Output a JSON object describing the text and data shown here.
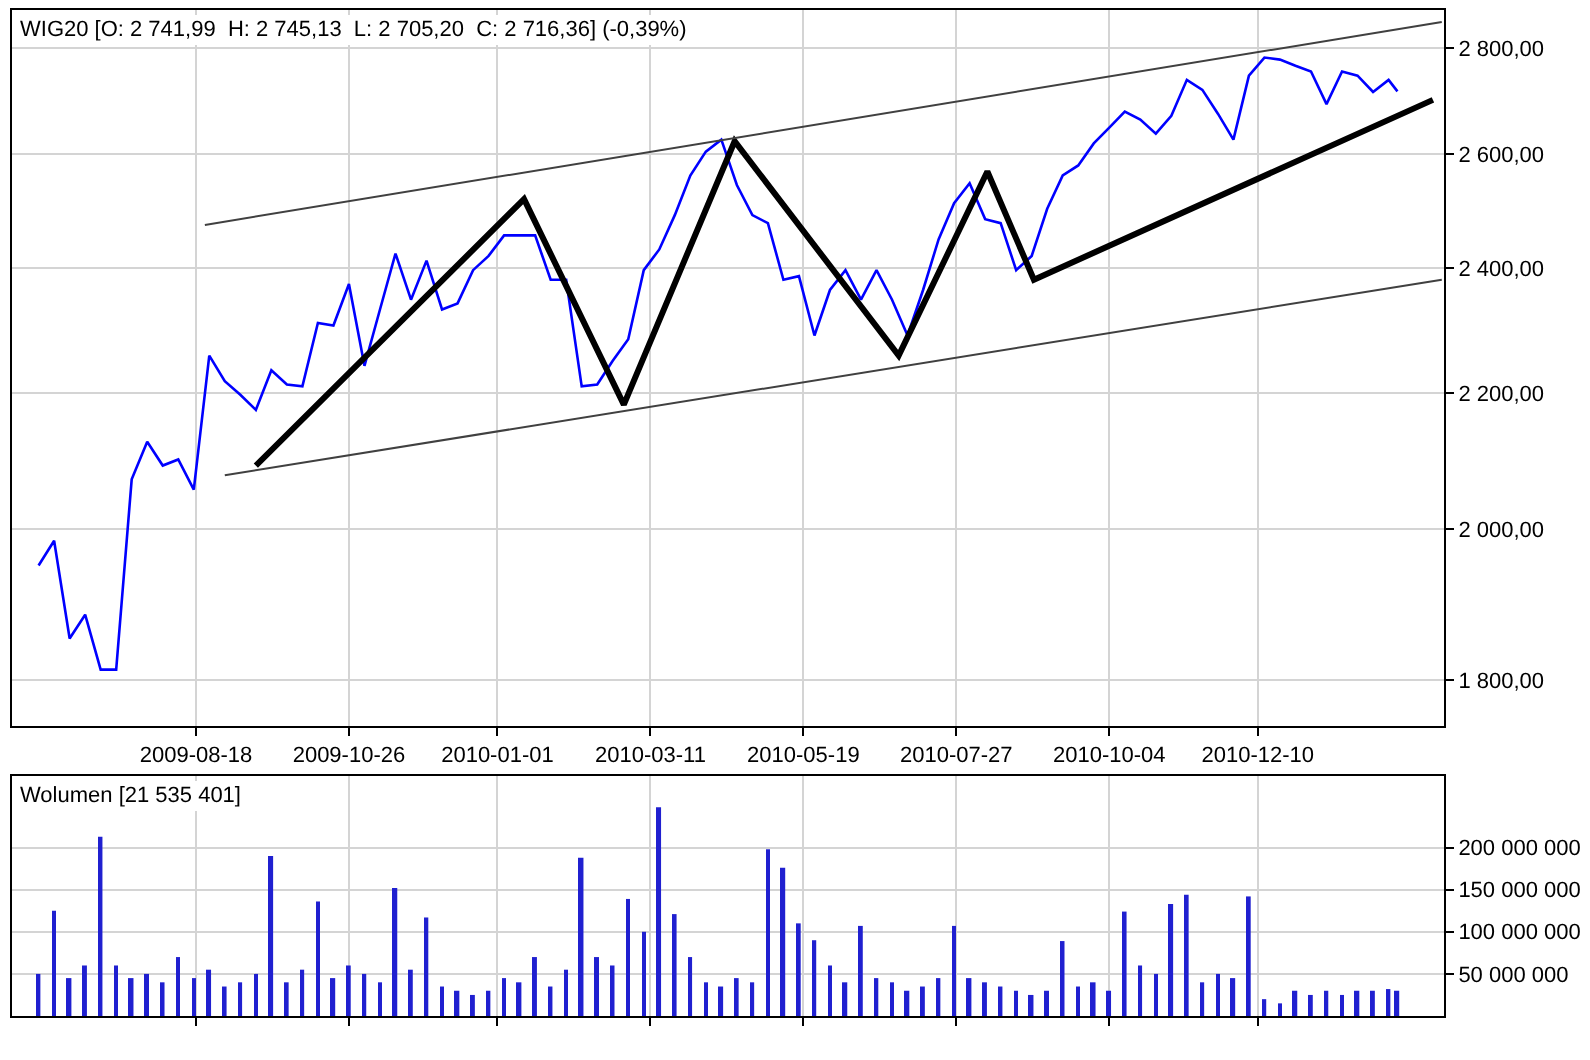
{
  "chart_data": [
    {
      "type": "line",
      "annotations": [
        "WIG20 [O: 2 741,99  H: 2 745,13  L: 2 705,20  C: 2 716,36] (-0,39%)"
      ],
      "log": true,
      "grid": true,
      "marker": "none",
      "line_style": "solid",
      "xlim": [
        "2009-05-27",
        "2011-03-04"
      ],
      "xticks": [
        "2009-08-18",
        "2009-10-26",
        "2010-01-01",
        "2010-03-11",
        "2010-05-19",
        "2010-07-27",
        "2010-10-04",
        "2010-12-10"
      ],
      "ylim": [
        1743,
        2875
      ],
      "yticks": [
        {
          "value": 1800,
          "label": "1 800,00"
        },
        {
          "value": 2000,
          "label": "2 000,00"
        },
        {
          "value": 2200,
          "label": "2 200,00"
        },
        {
          "value": 2400,
          "label": "2 400,00"
        },
        {
          "value": 2600,
          "label": "2 600,00"
        },
        {
          "value": 2800,
          "label": "2 800,00"
        }
      ],
      "series": [
        {
          "color": "#0000ff",
          "x": [
            "2009-06-08",
            "2009-06-15",
            "2009-06-22",
            "2009-06-29",
            "2009-07-06",
            "2009-07-13",
            "2009-07-20",
            "2009-07-27",
            "2009-08-03",
            "2009-08-10",
            "2009-08-17",
            "2009-08-24",
            "2009-08-31",
            "2009-09-07",
            "2009-09-14",
            "2009-09-21",
            "2009-09-28",
            "2009-10-05",
            "2009-10-12",
            "2009-10-19",
            "2009-10-26",
            "2009-11-02",
            "2009-11-09",
            "2009-11-16",
            "2009-11-23",
            "2009-11-30",
            "2009-12-07",
            "2009-12-14",
            "2009-12-21",
            "2009-12-28",
            "2010-01-04",
            "2010-01-11",
            "2010-01-18",
            "2010-01-25",
            "2010-02-01",
            "2010-02-08",
            "2010-02-15",
            "2010-02-22",
            "2010-03-01",
            "2010-03-08",
            "2010-03-15",
            "2010-03-22",
            "2010-03-29",
            "2010-04-05",
            "2010-04-12",
            "2010-04-19",
            "2010-04-26",
            "2010-05-03",
            "2010-05-10",
            "2010-05-17",
            "2010-05-24",
            "2010-05-31",
            "2010-06-07",
            "2010-06-14",
            "2010-06-21",
            "2010-06-28",
            "2010-07-05",
            "2010-07-12",
            "2010-07-19",
            "2010-07-26",
            "2010-08-02",
            "2010-08-09",
            "2010-08-16",
            "2010-08-23",
            "2010-08-30",
            "2010-09-06",
            "2010-09-13",
            "2010-09-20",
            "2010-09-27",
            "2010-10-04",
            "2010-10-11",
            "2010-10-18",
            "2010-10-25",
            "2010-11-01",
            "2010-11-08",
            "2010-11-15",
            "2010-11-22",
            "2010-11-29",
            "2010-12-06",
            "2010-12-13",
            "2010-12-20",
            "2010-12-27",
            "2011-01-03",
            "2011-01-10",
            "2011-01-17",
            "2011-01-24",
            "2011-01-31",
            "2011-02-07",
            "2011-02-11"
          ],
          "values": [
            1950,
            1984,
            1853,
            1884,
            1813,
            1813,
            2071,
            2126,
            2091,
            2100,
            2056,
            2258,
            2218,
            2197,
            2174,
            2235,
            2213,
            2210,
            2310,
            2306,
            2374,
            2242,
            2332,
            2425,
            2348,
            2413,
            2332,
            2342,
            2397,
            2421,
            2456,
            2456,
            2456,
            2381,
            2381,
            2210,
            2213,
            2250,
            2284,
            2397,
            2432,
            2491,
            2561,
            2604,
            2626,
            2544,
            2491,
            2477,
            2381,
            2387,
            2290,
            2364,
            2397,
            2348,
            2397,
            2348,
            2290,
            2364,
            2449,
            2512,
            2547,
            2484,
            2477,
            2397,
            2421,
            2502,
            2561,
            2579,
            2619,
            2648,
            2678,
            2663,
            2637,
            2670,
            2738,
            2719,
            2674,
            2626,
            2746,
            2781,
            2777,
            2765,
            2754,
            2692,
            2754,
            2746,
            2715,
            2738,
            2716
          ]
        },
        {
          "color": "#000000",
          "x": [
            "2009-09-14",
            "2010-01-13",
            "2010-02-27",
            "2010-04-18",
            "2010-07-01",
            "2010-08-10",
            "2010-08-31",
            "2011-02-27"
          ],
          "values": [
            2091,
            2519,
            2182,
            2623,
            2258,
            2568,
            2381,
            2700
          ]
        },
        {
          "color": "#404040",
          "x": [
            "2009-08-22",
            "2011-03-03"
          ],
          "values": [
            2474,
            2851
          ]
        },
        {
          "color": "#404040",
          "x": [
            "2009-08-31",
            "2011-03-03"
          ],
          "values": [
            2077,
            2381
          ]
        }
      ]
    },
    {
      "type": "bar",
      "annotations": [
        "Wolumen [21 535 401]"
      ],
      "grid": true,
      "tick_labels": "y",
      "xlim": [
        "2009-05-27",
        "2011-03-04"
      ],
      "xticks": [
        {
          "value": "2009-08-18",
          "label": null
        },
        {
          "value": "2009-10-26",
          "label": null
        },
        {
          "value": "2010-01-01",
          "label": null
        },
        {
          "value": "2010-03-11",
          "label": null
        },
        {
          "value": "2010-05-19",
          "label": null
        },
        {
          "value": "2010-07-27",
          "label": null
        },
        {
          "value": "2010-10-04",
          "label": null
        },
        {
          "value": "2010-12-10",
          "label": null
        }
      ],
      "ylim": [
        0,
        285000000
      ],
      "yticks": [
        {
          "value": 50000000,
          "label": "50 000 000"
        },
        {
          "value": 100000000,
          "label": "100 000 000"
        },
        {
          "value": 150000000,
          "label": "150 000 000"
        },
        {
          "value": 200000000,
          "label": "200 000 000"
        }
      ],
      "x": [
        "2009-06-08",
        "2009-06-15",
        "2009-06-22",
        "2009-06-29",
        "2009-07-06",
        "2009-07-13",
        "2009-07-20",
        "2009-07-27",
        "2009-08-03",
        "2009-08-10",
        "2009-08-17",
        "2009-08-24",
        "2009-08-31",
        "2009-09-07",
        "2009-09-14",
        "2009-09-21",
        "2009-09-28",
        "2009-10-05",
        "2009-10-12",
        "2009-10-19",
        "2009-10-26",
        "2009-11-02",
        "2009-11-09",
        "2009-11-16",
        "2009-11-23",
        "2009-11-30",
        "2009-12-07",
        "2009-12-14",
        "2009-12-21",
        "2009-12-28",
        "2010-01-04",
        "2010-01-11",
        "2010-01-18",
        "2010-01-25",
        "2010-02-01",
        "2010-02-08",
        "2010-02-15",
        "2010-02-22",
        "2010-03-01",
        "2010-03-08",
        "2010-03-15",
        "2010-03-22",
        "2010-03-29",
        "2010-04-05",
        "2010-04-12",
        "2010-04-19",
        "2010-04-26",
        "2010-05-03",
        "2010-05-10",
        "2010-05-17",
        "2010-05-24",
        "2010-05-31",
        "2010-06-07",
        "2010-06-14",
        "2010-06-21",
        "2010-06-28",
        "2010-07-05",
        "2010-07-12",
        "2010-07-19",
        "2010-07-26",
        "2010-08-02",
        "2010-08-09",
        "2010-08-16",
        "2010-08-23",
        "2010-08-30",
        "2010-09-06",
        "2010-09-13",
        "2010-09-20",
        "2010-09-27",
        "2010-10-04",
        "2010-10-11",
        "2010-10-18",
        "2010-10-25",
        "2010-11-01",
        "2010-11-08",
        "2010-11-15",
        "2010-11-22",
        "2010-11-29",
        "2010-12-06",
        "2010-12-13",
        "2010-12-20",
        "2010-12-27",
        "2011-01-03",
        "2011-01-10",
        "2011-01-17",
        "2011-01-24",
        "2011-01-31",
        "2011-02-07",
        "2011-02-11"
      ],
      "series": [
        {
          "color": "#2020d0",
          "values": [
            50000000,
            125000000,
            45000000,
            60000000,
            213000000,
            60000000,
            45000000,
            50000000,
            40000000,
            70000000,
            45000000,
            55000000,
            35000000,
            40000000,
            50000000,
            190000000,
            40000000,
            55000000,
            136000000,
            45000000,
            60000000,
            50000000,
            40000000,
            152000000,
            55000000,
            117000000,
            35000000,
            30000000,
            25000000,
            30000000,
            45000000,
            40000000,
            70000000,
            35000000,
            55000000,
            188000000,
            70000000,
            60000000,
            139000000,
            100000000,
            248000000,
            121000000,
            70000000,
            40000000,
            35000000,
            45000000,
            40000000,
            198000000,
            176000000,
            110000000,
            90000000,
            60000000,
            40000000,
            107000000,
            45000000,
            40000000,
            30000000,
            35000000,
            45000000,
            107000000,
            45000000,
            40000000,
            35000000,
            30000000,
            25000000,
            30000000,
            89000000,
            35000000,
            40000000,
            30000000,
            124000000,
            60000000,
            50000000,
            133000000,
            144000000,
            40000000,
            50000000,
            45000000,
            142000000,
            20000000,
            15000000,
            30000000,
            25000000,
            30000000,
            25000000,
            30000000,
            30000000,
            32000000,
            30000000
          ]
        }
      ]
    }
  ]
}
